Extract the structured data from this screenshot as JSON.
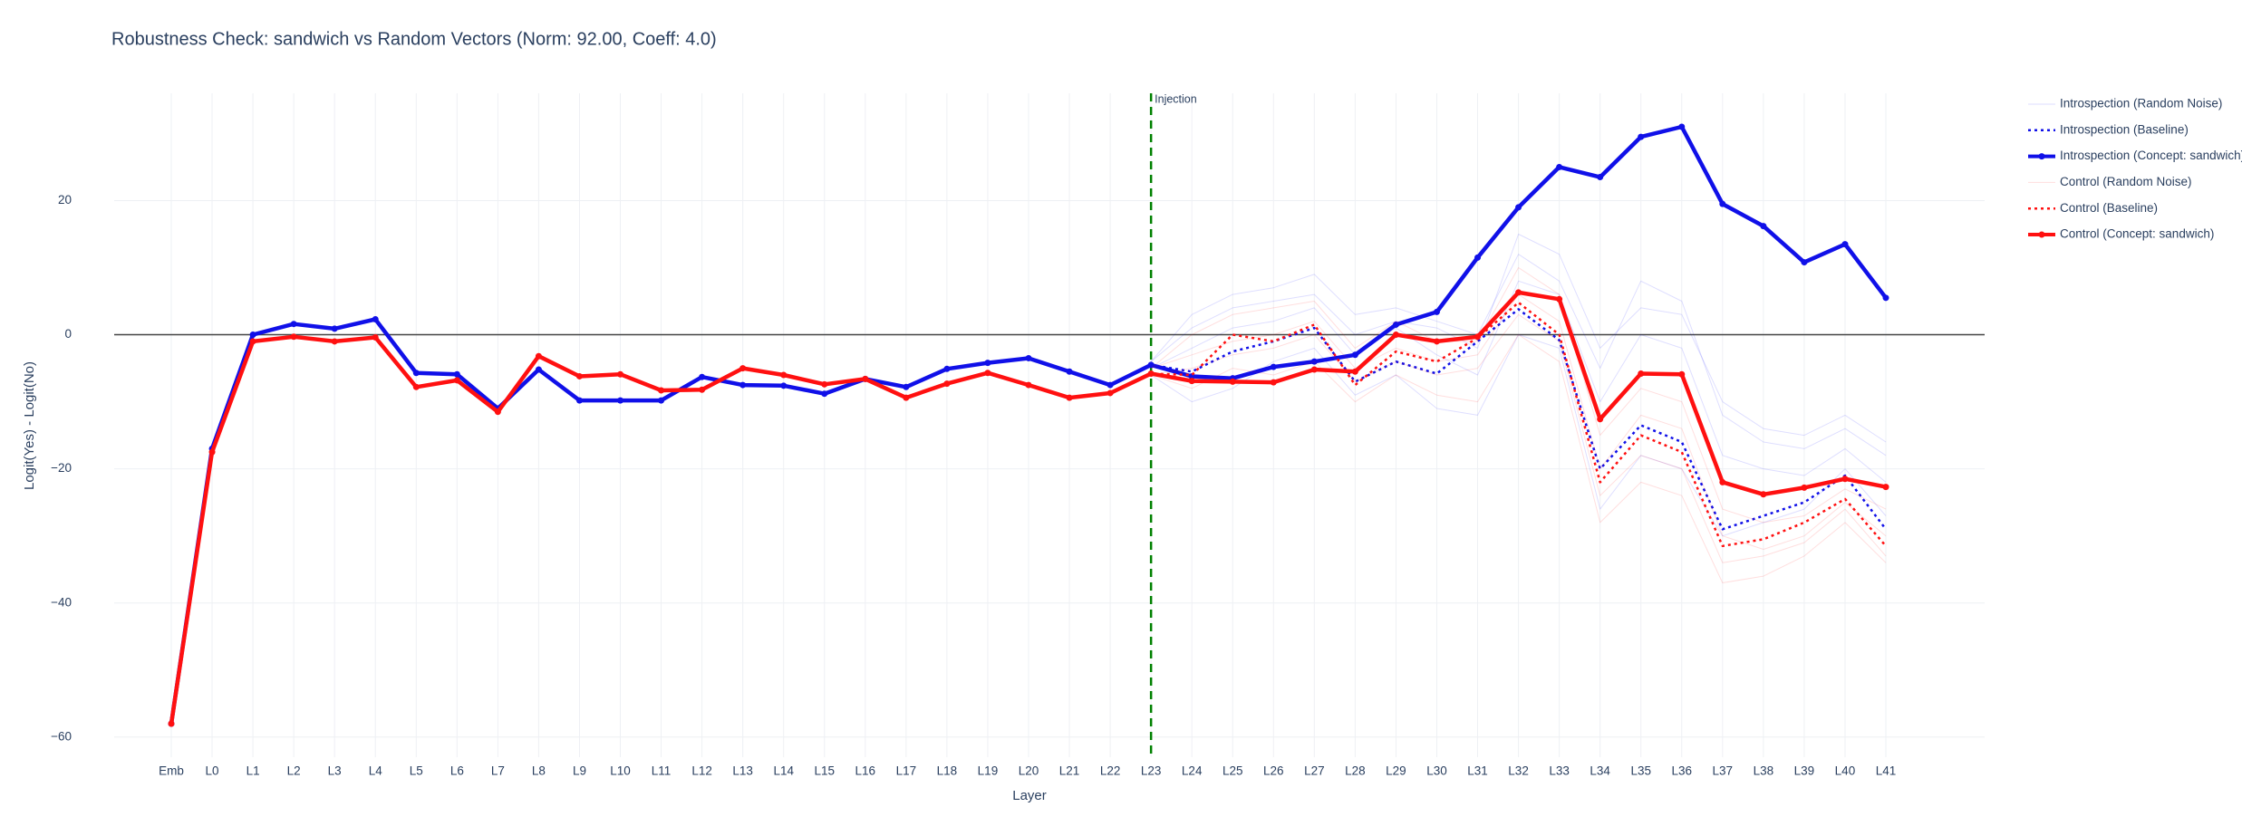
{
  "chart_data": {
    "type": "line",
    "title": "Robustness Check: sandwich vs Random Vectors (Norm: 92.00, Coeff: 4.0)",
    "x_label": "Layer",
    "y_label": "Logit(Yes) - Logit(No)",
    "categories": [
      "Emb",
      "L0",
      "L1",
      "L2",
      "L3",
      "L4",
      "L5",
      "L6",
      "L7",
      "L8",
      "L9",
      "L10",
      "L11",
      "L12",
      "L13",
      "L14",
      "L15",
      "L16",
      "L17",
      "L18",
      "L19",
      "L20",
      "L21",
      "L22",
      "L23",
      "L24",
      "L25",
      "L26",
      "L27",
      "L28",
      "L29",
      "L30",
      "L31",
      "L32",
      "L33",
      "L34",
      "L35",
      "L36",
      "L37",
      "L38",
      "L39",
      "L40",
      "L41"
    ],
    "ylim": [
      -63,
      36
    ],
    "yticks": [
      {
        "value": -60,
        "label": "−60"
      },
      {
        "value": -40,
        "label": "−40"
      },
      {
        "value": -20,
        "label": "−20"
      },
      0,
      20
    ],
    "grid": true,
    "zero_line": true,
    "legend": "right",
    "injection": {
      "at": "L23",
      "label": "Injection",
      "color": "#008000"
    },
    "series": [
      {
        "name": "Introspection (Random Noise)",
        "color": "rgba(0,0,255,0.13)",
        "width": 1,
        "line_style": "solid",
        "markers": false,
        "runs": [
          [
            null,
            null,
            null,
            null,
            null,
            null,
            null,
            null,
            null,
            null,
            null,
            null,
            null,
            null,
            null,
            null,
            null,
            null,
            null,
            null,
            null,
            null,
            null,
            null,
            -4,
            3,
            6,
            7,
            9,
            3,
            4,
            2,
            0,
            12,
            8,
            -5,
            8,
            5,
            -12,
            -16,
            -17,
            -14,
            -18
          ],
          [
            null,
            null,
            null,
            null,
            null,
            null,
            null,
            null,
            null,
            null,
            null,
            null,
            null,
            null,
            null,
            null,
            null,
            null,
            null,
            null,
            null,
            null,
            null,
            null,
            -5,
            -2,
            1,
            2,
            4,
            -3,
            1,
            -3,
            -6,
            8,
            6,
            -10,
            0,
            -2,
            -18,
            -20,
            -21,
            -17,
            -22
          ],
          [
            null,
            null,
            null,
            null,
            null,
            null,
            null,
            null,
            null,
            null,
            null,
            null,
            null,
            null,
            null,
            null,
            null,
            null,
            null,
            null,
            null,
            null,
            null,
            null,
            -6,
            -10,
            -8,
            -4,
            -2,
            -9,
            -6,
            -11,
            -12,
            0,
            -2,
            -26,
            -18,
            -20,
            -30,
            -28,
            -26,
            -20,
            -27
          ],
          [
            null,
            null,
            null,
            null,
            null,
            null,
            null,
            null,
            null,
            null,
            null,
            null,
            null,
            null,
            null,
            null,
            null,
            null,
            null,
            null,
            null,
            null,
            null,
            null,
            -4,
            1,
            4,
            5,
            6,
            0,
            2,
            1,
            -2,
            15,
            12,
            -2,
            4,
            3,
            -10,
            -14,
            -15,
            -12,
            -16
          ]
        ]
      },
      {
        "name": "Introspection (Baseline)",
        "color": "#1010e8",
        "width": 2.5,
        "line_style": "dot",
        "markers": false,
        "values": [
          -58,
          -17,
          0,
          1.6,
          0.9,
          2.3,
          -5.7,
          -5.9,
          -11,
          -5.2,
          -9.8,
          -9.8,
          -9.8,
          -6.3,
          -7.5,
          -7.6,
          -8.8,
          -6.6,
          -7.8,
          -5.1,
          -4.2,
          -3.5,
          -5.5,
          -7.5,
          -4.5,
          -5.5,
          -2.5,
          -1,
          1,
          -7,
          -4,
          -5.8,
          -1,
          3.8,
          -0.8,
          -20,
          -13.5,
          -16,
          -29,
          -27,
          -25,
          -21,
          -29
        ]
      },
      {
        "name": "Introspection (Concept: sandwich)",
        "color": "#1010e8",
        "width": 4.5,
        "line_style": "solid",
        "markers": true,
        "values": [
          -58,
          -17,
          0,
          1.6,
          0.9,
          2.3,
          -5.7,
          -5.9,
          -11,
          -5.2,
          -9.8,
          -9.8,
          -9.8,
          -6.3,
          -7.5,
          -7.6,
          -8.8,
          -6.6,
          -7.8,
          -5.1,
          -4.2,
          -3.5,
          -5.5,
          -7.5,
          -4.5,
          -6.2,
          -6.5,
          -4.8,
          -4,
          -3,
          1.5,
          3.4,
          11.5,
          19,
          25,
          23.5,
          29.5,
          31,
          19.5,
          16.2,
          10.8,
          13.5,
          5.5
        ]
      },
      {
        "name": "Control (Random Noise)",
        "color": "rgba(255,0,0,0.13)",
        "width": 1,
        "line_style": "solid",
        "markers": false,
        "runs": [
          [
            null,
            null,
            null,
            null,
            null,
            null,
            null,
            null,
            null,
            null,
            null,
            null,
            null,
            null,
            null,
            null,
            null,
            null,
            null,
            null,
            null,
            null,
            null,
            null,
            -5,
            -3,
            -1,
            0,
            2,
            -5,
            -2,
            -4,
            -3,
            6,
            2,
            -20,
            -12,
            -14,
            -30,
            -32,
            -30,
            -25,
            -30
          ],
          [
            null,
            null,
            null,
            null,
            null,
            null,
            null,
            null,
            null,
            null,
            null,
            null,
            null,
            null,
            null,
            null,
            null,
            null,
            null,
            null,
            null,
            null,
            null,
            null,
            -6,
            -8,
            -5,
            -6,
            -4,
            -10,
            -6,
            -9,
            -10,
            0,
            -4,
            -28,
            -22,
            -24,
            -37,
            -36,
            -33,
            -28,
            -34
          ],
          [
            null,
            null,
            null,
            null,
            null,
            null,
            null,
            null,
            null,
            null,
            null,
            null,
            null,
            null,
            null,
            null,
            null,
            null,
            null,
            null,
            null,
            null,
            null,
            null,
            -5,
            0,
            3,
            4,
            5,
            -2,
            2,
            -1,
            -1,
            10,
            6,
            -15,
            -8,
            -10,
            -26,
            -28,
            -27,
            -23,
            -26
          ],
          [
            null,
            null,
            null,
            null,
            null,
            null,
            null,
            null,
            null,
            null,
            null,
            null,
            null,
            null,
            null,
            null,
            null,
            null,
            null,
            null,
            null,
            null,
            null,
            null,
            -6,
            -5,
            -3,
            -2,
            0,
            -7,
            -4,
            -6,
            -5,
            3,
            -1,
            -24,
            -18,
            -20,
            -34,
            -33,
            -31,
            -26,
            -33
          ]
        ]
      },
      {
        "name": "Control (Baseline)",
        "color": "#ff1010",
        "width": 2.5,
        "line_style": "dot",
        "markers": false,
        "values": [
          -58,
          -17.5,
          -1,
          -0.3,
          -1,
          -0.4,
          -7.8,
          -6.8,
          -11.5,
          -3.2,
          -6.2,
          -5.9,
          -8.3,
          -8.2,
          -5,
          -6,
          -7.4,
          -6.6,
          -9.4,
          -7.3,
          -5.7,
          -7.5,
          -9.4,
          -8.7,
          -5.8,
          -6,
          0,
          -1,
          1.5,
          -7.5,
          -2.5,
          -4,
          -0.5,
          4.8,
          0,
          -22,
          -15,
          -17.5,
          -31.5,
          -30.5,
          -28,
          -24.5,
          -31.5
        ]
      },
      {
        "name": "Control (Concept: sandwich)",
        "color": "#ff1010",
        "width": 4.5,
        "line_style": "solid",
        "markers": true,
        "values": [
          -58,
          -17.5,
          -1,
          -0.3,
          -1,
          -0.4,
          -7.8,
          -6.8,
          -11.5,
          -3.2,
          -6.2,
          -5.9,
          -8.3,
          -8.2,
          -5,
          -6,
          -7.4,
          -6.6,
          -9.4,
          -7.3,
          -5.7,
          -7.5,
          -9.4,
          -8.7,
          -5.8,
          -6.9,
          -7,
          -7.1,
          -5.2,
          -5.5,
          0,
          -1,
          -0.3,
          6.3,
          5.3,
          -12.6,
          -5.8,
          -5.9,
          -22,
          -23.8,
          -22.8,
          -21.5,
          -22.7
        ]
      }
    ]
  }
}
